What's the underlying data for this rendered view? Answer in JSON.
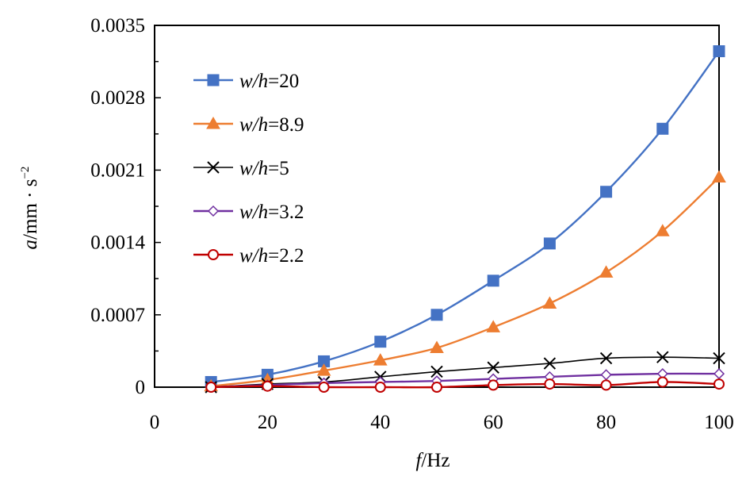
{
  "chart_data": {
    "type": "line",
    "xlabel_var": "f",
    "xlabel_unit": "/Hz",
    "ylabel_var": "a",
    "ylabel_unit": "/mm · s",
    "ylabel_exp": "−2",
    "xlim": [
      0,
      100
    ],
    "ylim": [
      0,
      0.0035
    ],
    "x_ticks": [
      0,
      20,
      40,
      60,
      80,
      100
    ],
    "y_ticks": [
      0,
      0.0007,
      0.0014,
      0.0021,
      0.0028,
      0.0035
    ],
    "x_tick_labels": [
      "0",
      "20",
      "40",
      "60",
      "80",
      "100"
    ],
    "y_tick_labels": [
      "0",
      "0.0007",
      "0.0014",
      "0.0021",
      "0.0028",
      "0.0035"
    ],
    "grid": false,
    "legend_position": "top-left",
    "x": [
      10,
      20,
      30,
      40,
      50,
      60,
      70,
      80,
      90,
      100
    ],
    "series": [
      {
        "name": "w/h=20",
        "name_var": "w/h",
        "name_value": "=20",
        "color": "#4472C4",
        "marker": "square",
        "values": [
          5e-05,
          0.00012,
          0.00025,
          0.00044,
          0.0007,
          0.00103,
          0.00139,
          0.00189,
          0.0025,
          0.00325
        ]
      },
      {
        "name": "w/h=8.9",
        "name_var": "w/h",
        "name_value": "=8.9",
        "color": "#ED7D31",
        "marker": "triangle",
        "values": [
          1e-05,
          7e-05,
          0.00016,
          0.00026,
          0.00038,
          0.00058,
          0.00081,
          0.00111,
          0.00151,
          0.00203
        ]
      },
      {
        "name": "w/h=5",
        "name_var": "w/h",
        "name_value": "=5",
        "color": "#000000",
        "marker": "x",
        "values": [
          0.0,
          3e-05,
          5e-05,
          0.0001,
          0.00015,
          0.00019,
          0.00023,
          0.00028,
          0.00029,
          0.00028
        ]
      },
      {
        "name": "w/h=3.2",
        "name_var": "w/h",
        "name_value": "=3.2",
        "color": "#7030A0",
        "marker": "diamond",
        "values": [
          0.0,
          2e-05,
          4e-05,
          5e-05,
          6e-05,
          8e-05,
          0.0001,
          0.00012,
          0.00013,
          0.00013
        ]
      },
      {
        "name": "w/h=2.2",
        "name_var": "w/h",
        "name_value": "=2.2",
        "color": "#C00000",
        "marker": "circle",
        "values": [
          0.0,
          1e-05,
          0.0,
          0.0,
          0.0,
          2e-05,
          3e-05,
          2e-05,
          5e-05,
          3e-05
        ]
      }
    ]
  }
}
